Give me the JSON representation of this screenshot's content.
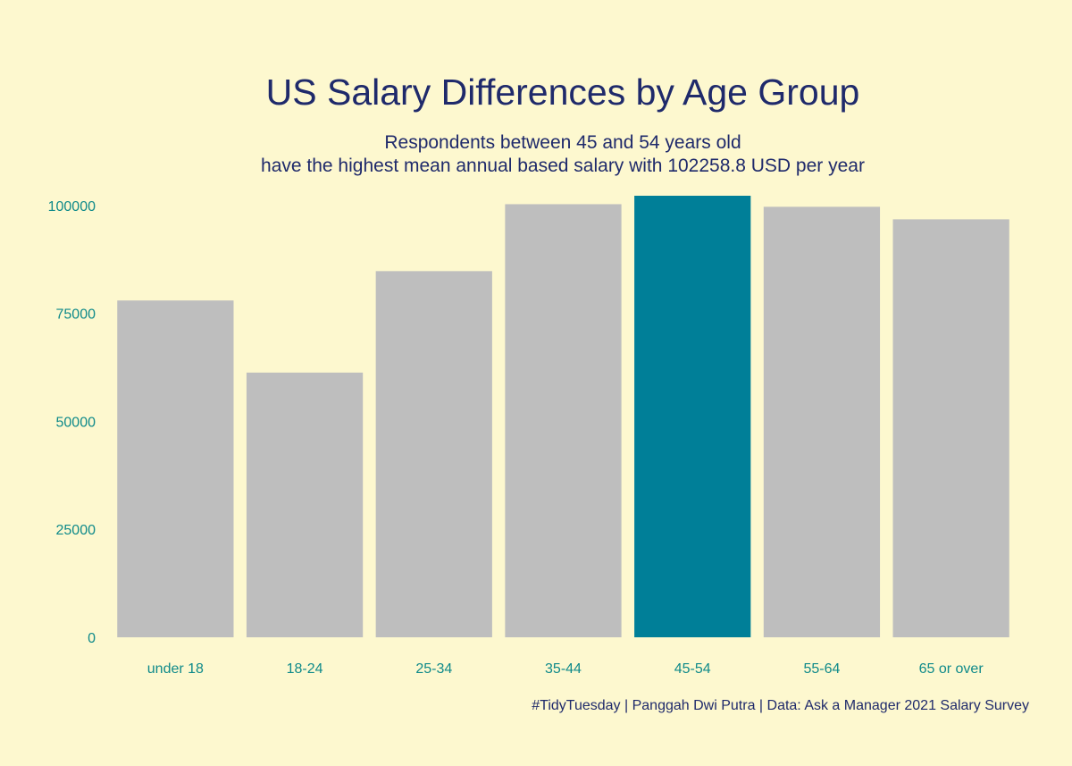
{
  "colors": {
    "background": "#fdf8cf",
    "bar_default": "#bebebe",
    "bar_highlight": "#007f98",
    "title_text": "#1f2a6b",
    "axis_text": "#0f8a8a"
  },
  "chart_data": {
    "type": "bar",
    "title": "US Salary Differences by Age Group",
    "subtitle_lines": [
      "Respondents between 45 and 54 years old",
      "have the highest mean annual based salary with 102258.8 USD per year"
    ],
    "xlabel": "",
    "ylabel": "",
    "categories": [
      "under 18",
      "18-24",
      "25-34",
      "35-44",
      "45-54",
      "55-64",
      "65 or over"
    ],
    "values": [
      78000,
      61300,
      84800,
      100300,
      102258.8,
      99700,
      96800
    ],
    "highlight_category": "45-54",
    "ylim": [
      0,
      102258.8
    ],
    "yticks": [
      0,
      25000,
      50000,
      75000,
      100000
    ],
    "grid": false,
    "legend": "none",
    "caption": "#TidyTuesday | Panggah Dwi Putra | Data: Ask a Manager 2021 Salary Survey"
  }
}
